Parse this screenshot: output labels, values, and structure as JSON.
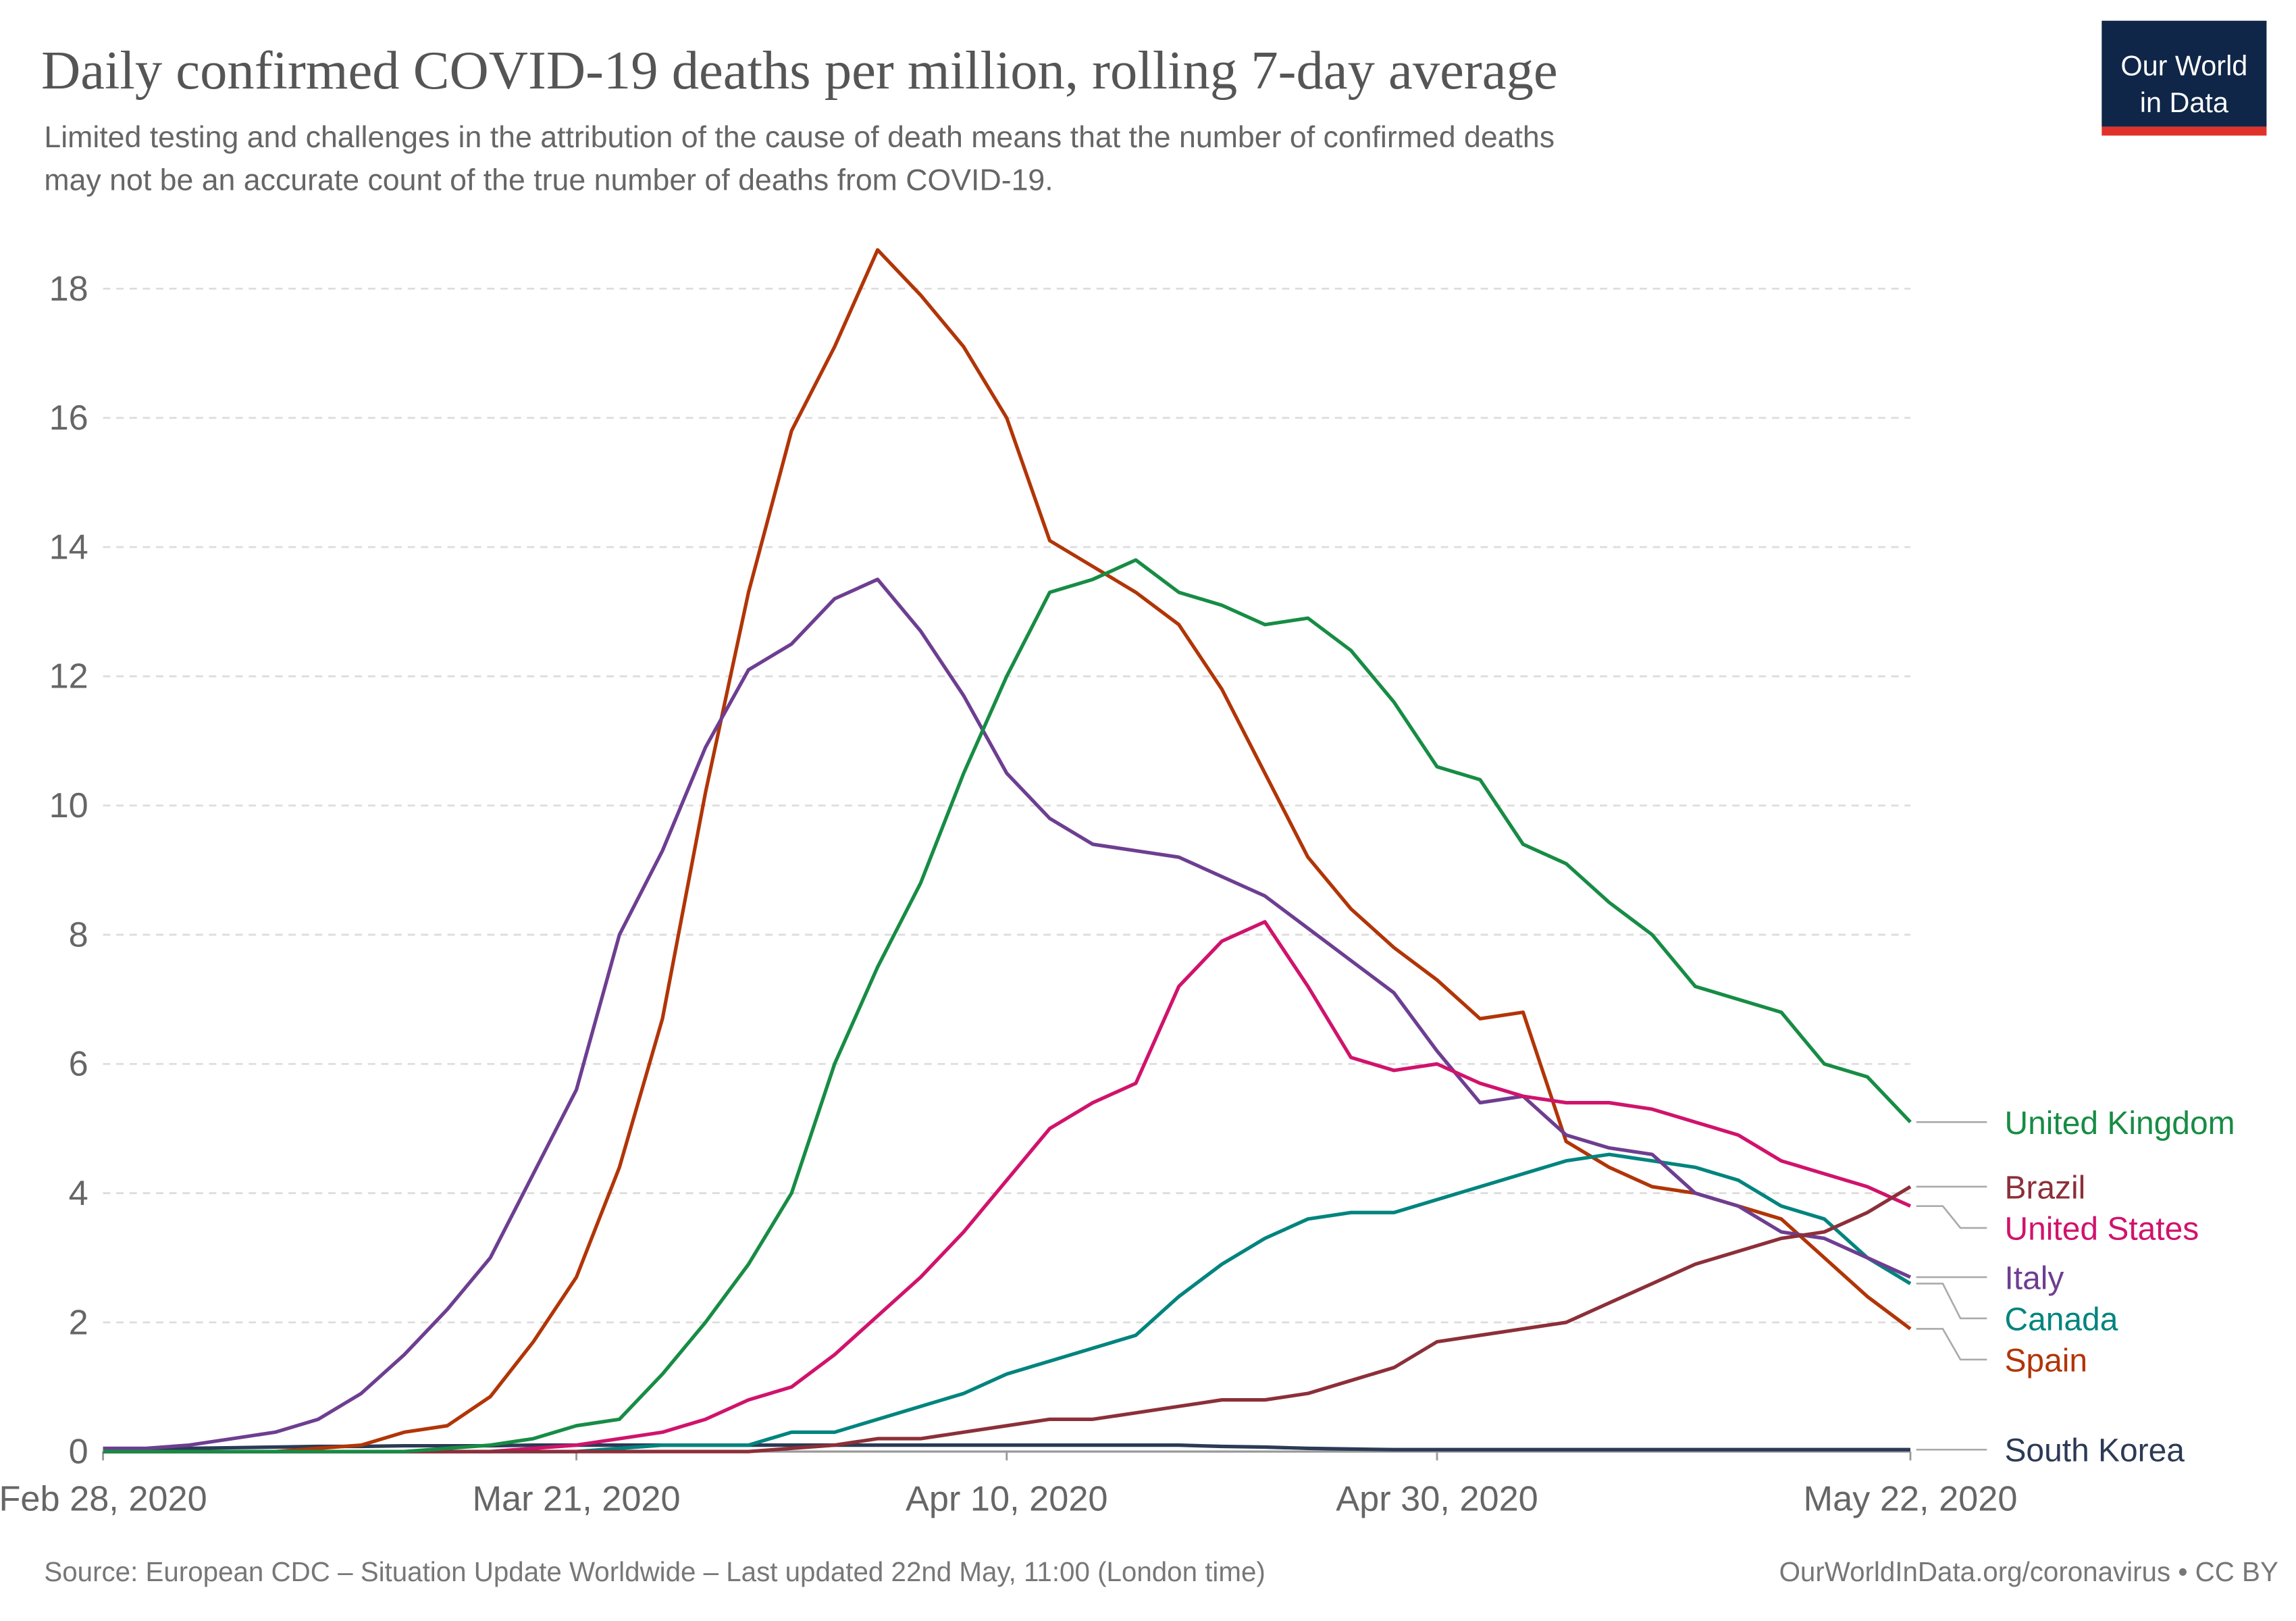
{
  "chart_data": {
    "type": "line",
    "title": "Daily confirmed COVID-19 deaths per million, rolling 7-day average",
    "subtitle": [
      "Limited testing and challenges in the attribution of the cause of death means that the number of confirmed deaths",
      "may not be an accurate count of the true number of deaths from COVID-19."
    ],
    "source": "Source: European CDC – Situation Update Worldwide – Last updated 22nd May, 11:00 (London time)",
    "credit": "OurWorldInData.org/coronavirus • CC BY",
    "logo": [
      "Our World",
      "in Data"
    ],
    "grid": true,
    "x": [
      "2020-02-28",
      "2020-03-01",
      "2020-03-03",
      "2020-03-05",
      "2020-03-07",
      "2020-03-09",
      "2020-03-11",
      "2020-03-13",
      "2020-03-15",
      "2020-03-17",
      "2020-03-19",
      "2020-03-21",
      "2020-03-23",
      "2020-03-25",
      "2020-03-27",
      "2020-03-29",
      "2020-03-31",
      "2020-04-02",
      "2020-04-04",
      "2020-04-06",
      "2020-04-08",
      "2020-04-10",
      "2020-04-12",
      "2020-04-14",
      "2020-04-16",
      "2020-04-18",
      "2020-04-20",
      "2020-04-22",
      "2020-04-24",
      "2020-04-26",
      "2020-04-28",
      "2020-04-30",
      "2020-05-02",
      "2020-05-04",
      "2020-05-06",
      "2020-05-08",
      "2020-05-10",
      "2020-05-12",
      "2020-05-14",
      "2020-05-16",
      "2020-05-18",
      "2020-05-20",
      "2020-05-22"
    ],
    "xlim": [
      "2020-02-28",
      "2020-05-22"
    ],
    "xticks": [
      {
        "value": "2020-02-28",
        "label": "Feb 28, 2020"
      },
      {
        "value": "2020-03-21",
        "label": "Mar 21, 2020"
      },
      {
        "value": "2020-04-10",
        "label": "Apr 10, 2020"
      },
      {
        "value": "2020-04-30",
        "label": "Apr 30, 2020"
      },
      {
        "value": "2020-05-22",
        "label": "May 22, 2020"
      }
    ],
    "ylim": [
      0,
      18
    ],
    "yticks": [
      0,
      2,
      4,
      6,
      8,
      10,
      12,
      14,
      16,
      18
    ],
    "series": [
      {
        "name": "United Kingdom",
        "color": "#178c44",
        "values": [
          0,
          0,
          0,
          0,
          0,
          0,
          0,
          0,
          0.05,
          0.1,
          0.2,
          0.4,
          0.5,
          1.2,
          2.0,
          2.9,
          4.0,
          6.0,
          7.5,
          8.8,
          10.5,
          12.0,
          13.3,
          13.5,
          13.8,
          13.3,
          13.1,
          12.8,
          12.9,
          12.4,
          11.6,
          10.6,
          10.4,
          9.4,
          9.1,
          8.5,
          8.0,
          7.2,
          7.0,
          6.8,
          6.0,
          5.8,
          5.1
        ]
      },
      {
        "name": "Brazil",
        "color": "#8c2f39",
        "values": [
          0,
          0,
          0,
          0,
          0,
          0,
          0,
          0,
          0,
          0,
          0,
          0,
          0,
          0,
          0,
          0,
          0.05,
          0.1,
          0.2,
          0.2,
          0.3,
          0.4,
          0.5,
          0.5,
          0.6,
          0.7,
          0.8,
          0.8,
          0.9,
          1.1,
          1.3,
          1.7,
          1.8,
          1.9,
          2.0,
          2.3,
          2.6,
          2.9,
          3.1,
          3.3,
          3.4,
          3.7,
          4.1
        ]
      },
      {
        "name": "United States",
        "color": "#d0136c",
        "values": [
          0,
          0,
          0,
          0,
          0,
          0,
          0,
          0,
          0,
          0,
          0.05,
          0.1,
          0.2,
          0.3,
          0.5,
          0.8,
          1.0,
          1.5,
          2.1,
          2.7,
          3.4,
          4.2,
          5.0,
          5.4,
          5.7,
          7.2,
          7.9,
          8.2,
          7.2,
          6.1,
          5.9,
          6.0,
          5.7,
          5.5,
          5.4,
          5.4,
          5.3,
          5.1,
          4.9,
          4.5,
          4.3,
          4.1,
          3.8
        ]
      },
      {
        "name": "Italy",
        "color": "#6d3e91",
        "values": [
          0.05,
          0.05,
          0.1,
          0.2,
          0.3,
          0.5,
          0.9,
          1.5,
          2.2,
          3.0,
          4.3,
          5.6,
          8.0,
          9.3,
          10.9,
          12.1,
          12.5,
          13.2,
          13.5,
          12.7,
          11.7,
          10.5,
          9.8,
          9.4,
          9.3,
          9.2,
          8.9,
          8.6,
          8.1,
          7.6,
          7.1,
          6.2,
          5.4,
          5.5,
          4.9,
          4.7,
          4.6,
          4.0,
          3.8,
          3.4,
          3.3,
          3.0,
          2.7
        ]
      },
      {
        "name": "Canada",
        "color": "#00847e",
        "values": [
          0,
          0,
          0,
          0,
          0,
          0,
          0,
          0,
          0,
          0,
          0,
          0,
          0.05,
          0.1,
          0.1,
          0.1,
          0.3,
          0.3,
          0.5,
          0.7,
          0.9,
          1.2,
          1.4,
          1.6,
          1.8,
          2.4,
          2.9,
          3.3,
          3.6,
          3.7,
          3.7,
          3.9,
          4.1,
          4.3,
          4.5,
          4.6,
          4.5,
          4.4,
          4.2,
          3.8,
          3.6,
          3.0,
          2.6
        ]
      },
      {
        "name": "Spain",
        "color": "#b13507",
        "values": [
          0,
          0,
          0,
          0,
          0,
          0.05,
          0.1,
          0.3,
          0.4,
          0.85,
          1.7,
          2.7,
          4.4,
          6.7,
          10.2,
          13.3,
          15.8,
          17.1,
          18.6,
          17.9,
          17.1,
          16.0,
          14.1,
          13.7,
          13.3,
          12.8,
          11.8,
          10.5,
          9.2,
          8.4,
          7.8,
          7.3,
          6.7,
          6.8,
          4.8,
          4.4,
          4.1,
          4.0,
          3.8,
          3.6,
          3.0,
          2.4,
          1.9
        ]
      },
      {
        "name": "South Korea",
        "color": "#2b3a55",
        "values": [
          0.02,
          0.03,
          0.05,
          0.06,
          0.07,
          0.08,
          0.08,
          0.09,
          0.09,
          0.09,
          0.1,
          0.1,
          0.1,
          0.1,
          0.1,
          0.1,
          0.1,
          0.1,
          0.1,
          0.1,
          0.1,
          0.1,
          0.1,
          0.1,
          0.1,
          0.1,
          0.08,
          0.07,
          0.05,
          0.04,
          0.03,
          0.03,
          0.03,
          0.03,
          0.03,
          0.03,
          0.03,
          0.03,
          0.03,
          0.03,
          0.03,
          0.03,
          0.03
        ]
      }
    ]
  }
}
